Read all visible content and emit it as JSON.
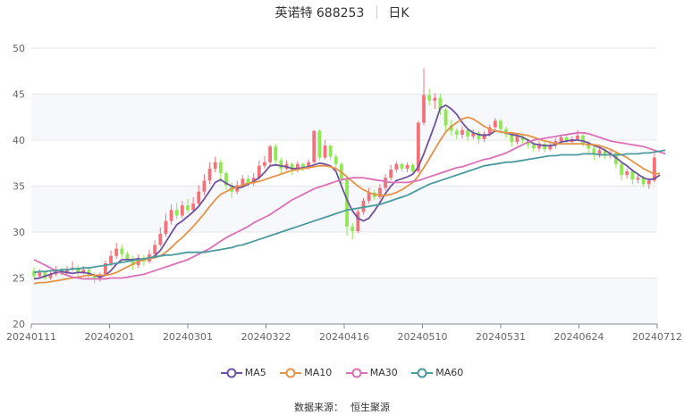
{
  "header": {
    "title": "英诺特 688253",
    "period": "日K"
  },
  "source": {
    "label": "数据来源：",
    "name": "恒生聚源"
  },
  "colors": {
    "up": "#f4717a",
    "down": "#8ee850",
    "ma5": "#6f52a0",
    "ma10": "#e59247",
    "ma30": "#dc6fb6",
    "ma60": "#4b9a9e"
  },
  "chart_data": {
    "type": "candlestick",
    "ylim": [
      20,
      50
    ],
    "yticks": [
      20,
      25,
      30,
      35,
      40,
      45,
      50
    ],
    "xticks": [
      "20240111",
      "20240201",
      "20240301",
      "20240322",
      "20240416",
      "20240510",
      "20240531",
      "20240624",
      "20240712"
    ],
    "grid": true,
    "legend_position": "bottom",
    "candles": [
      [
        25.8,
        25.2,
        26.2,
        24.9
      ],
      [
        25.2,
        25.6,
        26.0,
        24.9
      ],
      [
        25.6,
        25.0,
        25.8,
        24.8
      ],
      [
        25.0,
        25.4,
        25.7,
        24.8
      ],
      [
        25.4,
        25.9,
        26.3,
        25.2
      ],
      [
        25.9,
        25.5,
        26.1,
        25.3
      ],
      [
        25.5,
        25.9,
        26.3,
        25.3
      ],
      [
        25.9,
        26.1,
        26.8,
        25.7
      ],
      [
        26.1,
        25.6,
        26.4,
        25.2
      ],
      [
        25.6,
        25.9,
        26.3,
        25.4
      ],
      [
        25.9,
        25.3,
        26.2,
        24.8
      ],
      [
        25.3,
        24.9,
        25.6,
        24.4
      ],
      [
        24.9,
        25.4,
        25.6,
        24.6
      ],
      [
        25.4,
        26.6,
        26.9,
        25.2
      ],
      [
        26.6,
        27.4,
        28.0,
        26.3
      ],
      [
        27.4,
        28.2,
        28.8,
        27.1
      ],
      [
        28.2,
        27.6,
        28.6,
        27.2
      ],
      [
        27.6,
        27.1,
        27.9,
        26.8
      ],
      [
        27.1,
        26.4,
        27.4,
        25.9
      ],
      [
        26.4,
        27.2,
        27.6,
        26.1
      ],
      [
        27.2,
        26.8,
        27.5,
        26.3
      ],
      [
        26.8,
        27.6,
        28.1,
        26.6
      ],
      [
        27.6,
        28.6,
        29.1,
        27.4
      ],
      [
        28.6,
        29.8,
        30.5,
        28.4
      ],
      [
        29.8,
        31.2,
        32.0,
        29.5
      ],
      [
        31.2,
        32.4,
        33.0,
        30.8
      ],
      [
        32.4,
        31.8,
        33.2,
        31.4
      ],
      [
        31.8,
        32.9,
        33.4,
        31.5
      ],
      [
        32.9,
        32.4,
        33.6,
        32.0
      ],
      [
        32.4,
        33.1,
        33.8,
        32.1
      ],
      [
        33.1,
        34.4,
        35.1,
        32.9
      ],
      [
        34.4,
        35.6,
        36.3,
        34.0
      ],
      [
        35.6,
        36.9,
        37.6,
        35.2
      ],
      [
        36.9,
        37.6,
        38.2,
        36.5
      ],
      [
        37.6,
        36.4,
        37.9,
        35.4
      ],
      [
        36.4,
        35.1,
        36.6,
        34.6
      ],
      [
        35.1,
        34.4,
        35.4,
        33.7
      ],
      [
        34.4,
        35.1,
        35.6,
        34.1
      ],
      [
        35.1,
        35.8,
        36.2,
        34.8
      ],
      [
        35.8,
        35.3,
        36.2,
        34.9
      ],
      [
        35.3,
        35.9,
        36.4,
        35.0
      ],
      [
        35.9,
        37.2,
        37.8,
        35.7
      ],
      [
        37.2,
        37.6,
        38.3,
        36.9
      ],
      [
        37.6,
        39.3,
        39.5,
        37.2
      ],
      [
        39.3,
        37.8,
        39.6,
        37.3
      ],
      [
        37.8,
        36.9,
        38.1,
        36.3
      ],
      [
        36.9,
        37.4,
        37.8,
        36.7
      ],
      [
        37.4,
        36.8,
        37.6,
        36.2
      ],
      [
        36.8,
        37.4,
        37.7,
        36.5
      ],
      [
        37.4,
        37.0,
        37.6,
        36.6
      ],
      [
        37.0,
        37.6,
        37.9,
        36.8
      ],
      [
        37.6,
        41.0,
        41.1,
        37.4
      ],
      [
        41.0,
        38.1,
        41.2,
        37.8
      ],
      [
        38.1,
        39.4,
        40.0,
        37.9
      ],
      [
        39.4,
        38.2,
        39.5,
        37.8
      ],
      [
        38.2,
        37.4,
        38.5,
        36.9
      ],
      [
        37.4,
        35.8,
        37.6,
        35.1
      ],
      [
        35.8,
        30.6,
        35.9,
        29.6
      ],
      [
        30.6,
        30.1,
        31.0,
        29.2
      ],
      [
        30.1,
        32.2,
        32.5,
        29.9
      ],
      [
        32.2,
        33.4,
        33.7,
        31.9
      ],
      [
        33.4,
        34.3,
        34.8,
        33.1
      ],
      [
        34.3,
        33.8,
        34.6,
        33.5
      ],
      [
        33.8,
        34.8,
        35.2,
        33.6
      ],
      [
        34.8,
        35.9,
        36.3,
        34.5
      ],
      [
        35.9,
        36.8,
        37.3,
        35.6
      ],
      [
        36.8,
        37.4,
        37.7,
        36.5
      ],
      [
        37.4,
        36.9,
        37.6,
        36.6
      ],
      [
        36.9,
        37.3,
        37.6,
        36.5
      ],
      [
        37.3,
        36.6,
        37.5,
        36.2
      ],
      [
        36.6,
        41.9,
        42.1,
        36.4
      ],
      [
        41.9,
        44.9,
        47.8,
        41.6
      ],
      [
        44.9,
        44.3,
        45.6,
        43.8
      ],
      [
        44.3,
        44.6,
        45.1,
        43.4
      ],
      [
        44.6,
        43.3,
        45.0,
        42.7
      ],
      [
        43.3,
        41.6,
        43.5,
        40.9
      ],
      [
        41.6,
        41.0,
        42.2,
        40.5
      ],
      [
        41.0,
        40.6,
        41.3,
        40.1
      ],
      [
        40.6,
        41.1,
        41.5,
        40.2
      ],
      [
        41.1,
        40.4,
        41.3,
        39.9
      ],
      [
        40.4,
        40.8,
        41.2,
        40.1
      ],
      [
        40.8,
        40.1,
        41.0,
        39.6
      ],
      [
        40.1,
        40.7,
        41.0,
        39.8
      ],
      [
        40.7,
        41.4,
        41.7,
        40.4
      ],
      [
        41.4,
        42.1,
        42.4,
        41.1
      ],
      [
        42.1,
        41.2,
        42.3,
        40.7
      ],
      [
        41.2,
        40.6,
        41.5,
        40.2
      ],
      [
        40.6,
        39.8,
        40.9,
        39.3
      ],
      [
        39.8,
        40.4,
        40.7,
        39.5
      ],
      [
        40.4,
        40.0,
        40.6,
        39.6
      ],
      [
        40.0,
        39.5,
        40.2,
        39.1
      ],
      [
        39.5,
        39.1,
        39.8,
        38.7
      ],
      [
        39.1,
        39.6,
        39.9,
        38.8
      ],
      [
        39.6,
        39.0,
        39.8,
        38.7
      ],
      [
        39.0,
        39.4,
        39.7,
        38.8
      ],
      [
        39.4,
        39.9,
        40.2,
        39.1
      ],
      [
        39.9,
        40.3,
        40.6,
        39.6
      ],
      [
        40.3,
        39.8,
        40.5,
        39.5
      ],
      [
        39.8,
        40.1,
        40.4,
        39.6
      ],
      [
        40.1,
        40.5,
        41.1,
        39.9
      ],
      [
        40.5,
        39.6,
        40.7,
        39.3
      ],
      [
        39.6,
        39.1,
        39.9,
        38.6
      ],
      [
        39.1,
        38.4,
        39.3,
        37.8
      ],
      [
        38.4,
        38.9,
        39.2,
        38.1
      ],
      [
        38.9,
        38.3,
        39.1,
        37.9
      ],
      [
        38.3,
        38.6,
        38.9,
        38.0
      ],
      [
        38.6,
        37.4,
        38.8,
        36.9
      ],
      [
        37.4,
        36.2,
        37.6,
        35.6
      ],
      [
        36.2,
        36.6,
        36.9,
        35.8
      ],
      [
        36.6,
        35.7,
        36.8,
        35.2
      ],
      [
        35.7,
        35.9,
        36.2,
        35.3
      ],
      [
        35.9,
        35.2,
        36.1,
        34.9
      ],
      [
        35.2,
        35.6,
        35.9,
        34.7
      ],
      [
        35.6,
        38.1,
        38.6,
        35.4
      ]
    ],
    "series": [
      {
        "name": "MA5",
        "values": [
          24.9,
          25.0,
          25.2,
          25.4,
          25.6,
          25.7,
          25.6,
          25.5,
          25.6,
          25.6,
          25.5,
          25.3,
          25.1,
          25.3,
          25.8,
          26.5,
          27.0,
          27.0,
          27.0,
          27.1,
          27.0,
          27.1,
          27.4,
          28.0,
          28.9,
          29.9,
          30.8,
          31.2,
          31.7,
          32.2,
          32.8,
          33.6,
          34.5,
          35.4,
          35.7,
          35.3,
          35.0,
          34.8,
          34.9,
          35.2,
          35.5,
          35.9,
          36.5,
          37.2,
          37.3,
          37.2,
          37.1,
          36.9,
          36.9,
          37.0,
          37.1,
          37.3,
          37.5,
          37.4,
          37.2,
          36.6,
          35.0,
          33.5,
          32.3,
          31.5,
          31.2,
          31.5,
          32.3,
          33.2,
          34.2,
          35.0,
          35.6,
          35.8,
          36.0,
          36.3,
          37.1,
          38.5,
          40.1,
          41.7,
          43.5,
          43.8,
          43.4,
          42.8,
          41.9,
          41.2,
          40.8,
          40.6,
          40.5,
          40.6,
          41.0,
          40.9,
          40.8,
          40.6,
          40.5,
          40.3,
          40.0,
          39.6,
          39.5,
          39.4,
          39.4,
          39.5,
          39.8,
          39.9,
          40.0,
          40.0,
          39.9,
          39.7,
          39.4,
          39.2,
          38.9,
          38.5,
          38.1,
          37.6,
          37.2,
          36.7,
          36.3,
          35.9,
          35.7,
          35.8,
          36.2
        ]
      },
      {
        "name": "MA10",
        "values": [
          24.4,
          24.5,
          24.5,
          24.6,
          24.7,
          24.8,
          24.9,
          25.0,
          25.1,
          25.2,
          25.3,
          25.3,
          25.3,
          25.3,
          25.4,
          25.6,
          25.9,
          26.2,
          26.5,
          26.8,
          27.0,
          27.1,
          27.2,
          27.4,
          27.8,
          28.3,
          28.9,
          29.4,
          30.0,
          30.6,
          31.3,
          32.0,
          32.8,
          33.5,
          34.1,
          34.4,
          34.7,
          34.9,
          35.1,
          35.3,
          35.4,
          35.5,
          35.7,
          35.9,
          36.1,
          36.3,
          36.5,
          36.7,
          36.8,
          36.9,
          37.0,
          37.1,
          37.2,
          37.2,
          37.1,
          36.9,
          36.5,
          36.0,
          35.5,
          35.0,
          34.6,
          34.3,
          34.1,
          34.0,
          34.0,
          34.1,
          34.3,
          34.6,
          35.0,
          35.4,
          36.1,
          37.0,
          38.0,
          39.0,
          40.0,
          40.9,
          41.5,
          41.9,
          42.3,
          42.5,
          42.3,
          41.9,
          41.5,
          41.2,
          41.0,
          40.9,
          40.8,
          40.8,
          40.7,
          40.6,
          40.5,
          40.3,
          40.1,
          39.9,
          39.8,
          39.6,
          39.6,
          39.6,
          39.6,
          39.6,
          39.6,
          39.5,
          39.5,
          39.4,
          39.2,
          39.0,
          38.7,
          38.4,
          38.1,
          37.7,
          37.3,
          36.9,
          36.6,
          36.3,
          36.4
        ]
      },
      {
        "name": "MA30",
        "values": [
          27.0,
          26.7,
          26.4,
          26.1,
          25.8,
          25.5,
          25.3,
          25.1,
          25.0,
          24.9,
          24.9,
          24.9,
          24.9,
          24.9,
          25.0,
          25.0,
          25.0,
          25.1,
          25.2,
          25.3,
          25.4,
          25.6,
          25.8,
          26.0,
          26.2,
          26.4,
          26.6,
          26.8,
          27.0,
          27.3,
          27.6,
          27.9,
          28.2,
          28.6,
          29.0,
          29.4,
          29.7,
          30.0,
          30.3,
          30.6,
          31.0,
          31.3,
          31.6,
          31.9,
          32.3,
          32.7,
          33.1,
          33.5,
          33.8,
          34.1,
          34.4,
          34.7,
          34.9,
          35.1,
          35.3,
          35.5,
          35.7,
          35.8,
          35.9,
          35.9,
          35.9,
          35.8,
          35.7,
          35.6,
          35.5,
          35.4,
          35.4,
          35.4,
          35.4,
          35.5,
          35.6,
          35.8,
          36.0,
          36.2,
          36.4,
          36.6,
          36.8,
          37.0,
          37.1,
          37.3,
          37.5,
          37.7,
          37.9,
          38.0,
          38.2,
          38.4,
          38.6,
          38.9,
          39.2,
          39.5,
          39.8,
          40.0,
          40.1,
          40.2,
          40.3,
          40.4,
          40.5,
          40.6,
          40.7,
          40.8,
          40.8,
          40.7,
          40.5,
          40.3,
          40.1,
          39.9,
          39.8,
          39.7,
          39.6,
          39.5,
          39.4,
          39.3,
          39.1,
          38.9,
          38.7,
          38.5
        ]
      },
      {
        "name": "MA60",
        "values": [
          25.6,
          25.7,
          25.7,
          25.8,
          25.8,
          25.9,
          25.9,
          26.0,
          26.0,
          26.1,
          26.1,
          26.2,
          26.3,
          26.4,
          26.5,
          26.6,
          26.7,
          26.8,
          26.9,
          27.0,
          27.1,
          27.2,
          27.3,
          27.4,
          27.5,
          27.5,
          27.6,
          27.7,
          27.8,
          27.8,
          27.8,
          27.8,
          27.9,
          28.0,
          28.1,
          28.2,
          28.3,
          28.5,
          28.6,
          28.8,
          29.0,
          29.2,
          29.4,
          29.6,
          29.8,
          30.0,
          30.2,
          30.4,
          30.6,
          30.8,
          31.0,
          31.2,
          31.4,
          31.6,
          31.8,
          32.0,
          32.2,
          32.4,
          32.5,
          32.6,
          32.7,
          32.8,
          32.9,
          33.0,
          33.2,
          33.4,
          33.6,
          33.8,
          34.0,
          34.3,
          34.6,
          34.9,
          35.2,
          35.4,
          35.6,
          35.8,
          36.0,
          36.2,
          36.4,
          36.6,
          36.8,
          37.0,
          37.2,
          37.3,
          37.4,
          37.5,
          37.6,
          37.6,
          37.7,
          37.8,
          37.9,
          38.0,
          38.1,
          38.2,
          38.3,
          38.3,
          38.4,
          38.4,
          38.4,
          38.4,
          38.5,
          38.5,
          38.5,
          38.4,
          38.4,
          38.4,
          38.4,
          38.4,
          38.5,
          38.5,
          38.5,
          38.6,
          38.6,
          38.7,
          38.8,
          38.9
        ]
      }
    ]
  }
}
